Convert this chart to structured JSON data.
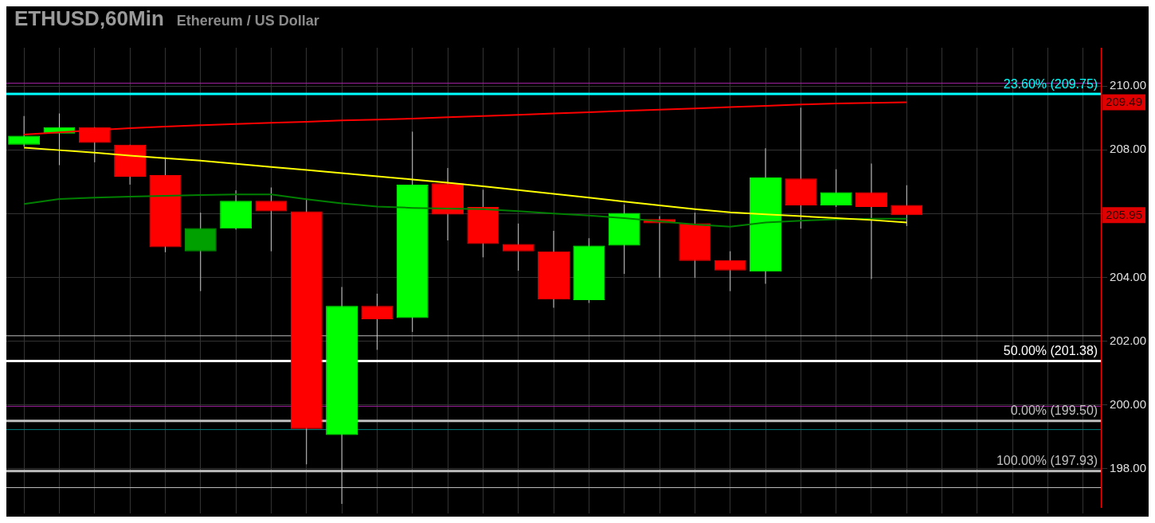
{
  "chart_data": {
    "type": "candlestick",
    "title": "ETHUSD,60Min",
    "subtitle": "Ethereum / US Dollar",
    "categories": [
      null,
      null,
      null,
      null,
      null,
      null,
      null,
      null,
      null,
      null,
      null,
      null,
      null,
      null,
      null,
      null,
      null,
      null,
      null,
      null,
      null,
      null,
      null,
      null,
      null,
      null,
      null,
      null,
      null,
      null,
      null
    ],
    "ohlc": [
      [
        208.16,
        209.06,
        208.1,
        208.44
      ],
      [
        208.51,
        209.14,
        207.52,
        208.71
      ],
      [
        208.71,
        208.71,
        207.61,
        208.22
      ],
      [
        208.16,
        208.16,
        206.91,
        207.16
      ],
      [
        207.21,
        207.76,
        204.79,
        204.95
      ],
      [
        204.82,
        206.03,
        203.57,
        205.55
      ],
      [
        205.53,
        206.73,
        205.5,
        206.4
      ],
      [
        206.4,
        206.82,
        204.82,
        206.07
      ],
      [
        206.07,
        206.47,
        198.14,
        199.25
      ],
      [
        199.06,
        203.7,
        196.9,
        203.11
      ],
      [
        203.11,
        203.49,
        201.73,
        202.69
      ],
      [
        202.73,
        208.57,
        202.29,
        206.91
      ],
      [
        206.95,
        207.43,
        205.16,
        205.97
      ],
      [
        206.21,
        206.75,
        204.63,
        205.05
      ],
      [
        205.05,
        205.69,
        204.21,
        204.82
      ],
      [
        204.82,
        205.46,
        203.05,
        203.31
      ],
      [
        203.29,
        205.23,
        203.2,
        205.0
      ],
      [
        205.0,
        206.29,
        204.11,
        206.02
      ],
      [
        205.83,
        205.92,
        203.99,
        205.7
      ],
      [
        205.7,
        206.03,
        203.99,
        204.52
      ],
      [
        204.54,
        204.82,
        203.57,
        204.22
      ],
      [
        204.18,
        208.05,
        203.8,
        207.13
      ],
      [
        207.1,
        209.32,
        205.53,
        206.26
      ],
      [
        206.26,
        207.39,
        206.21,
        206.67
      ],
      [
        206.67,
        207.57,
        203.95,
        206.21
      ],
      [
        206.27,
        206.89,
        205.61,
        205.95
      ],
      null,
      null,
      null,
      null,
      null
    ],
    "colors": [
      "#00ff00",
      "#00ff00",
      "#ff0000",
      "#ff0000",
      "#ff0000",
      "#00a000",
      "#00ff00",
      "#ff0000",
      "#ff0000",
      "#00ff00",
      "#ff0000",
      "#00ff00",
      "#ff0000",
      "#ff0000",
      "#ff0000",
      "#ff0000",
      "#00ff00",
      "#00ff00",
      "#ff0000",
      "#ff0000",
      "#ff0000",
      "#00ff00",
      "#ff0000",
      "#00ff00",
      "#ff0000",
      "#ff0000",
      null,
      null,
      null,
      null,
      null
    ],
    "series": [
      {
        "type": "line",
        "color": "#ff0000",
        "values": [
          208.48,
          208.55,
          208.62,
          208.68,
          208.73,
          208.77,
          208.81,
          208.85,
          208.88,
          208.92,
          208.95,
          208.98,
          209.02,
          209.06,
          209.1,
          209.14,
          209.18,
          209.22,
          209.26,
          209.3,
          209.34,
          209.38,
          209.42,
          209.45,
          209.47,
          209.49,
          null,
          null,
          null,
          null,
          null
        ]
      },
      {
        "type": "line",
        "color": "#ffff00",
        "values": [
          208.07,
          207.99,
          207.91,
          207.82,
          207.74,
          207.66,
          207.56,
          207.46,
          207.37,
          207.27,
          207.17,
          207.07,
          206.97,
          206.86,
          206.74,
          206.62,
          206.5,
          206.38,
          206.26,
          206.14,
          206.04,
          205.98,
          205.92,
          205.86,
          205.8,
          205.72,
          null,
          null,
          null,
          null,
          null
        ]
      },
      {
        "type": "line",
        "color": "#008000",
        "values": [
          206.3,
          206.46,
          206.5,
          206.53,
          206.56,
          206.58,
          206.6,
          206.6,
          206.45,
          206.32,
          206.22,
          206.18,
          206.16,
          206.14,
          206.08,
          206.0,
          205.94,
          205.86,
          205.76,
          205.66,
          205.59,
          205.72,
          205.78,
          205.82,
          205.84,
          205.84,
          null,
          null,
          null,
          null,
          null
        ]
      }
    ],
    "ylim": [
      196.8,
      211.2
    ],
    "yticks": [
      {
        "value": 198,
        "label": "198.00"
      },
      {
        "value": 200,
        "label": "200.00"
      },
      {
        "value": 202,
        "label": "202.00"
      },
      {
        "value": 204,
        "label": "204.00"
      },
      {
        "value": 206,
        "label": null
      },
      {
        "value": 208,
        "label": "208.00"
      },
      {
        "value": 210,
        "label": "210.00"
      }
    ],
    "grid": true,
    "marker": "none",
    "line_style": "solid",
    "ref_lines": [
      {
        "axis": "y",
        "value": 210.09,
        "color": "#a020a0"
      },
      {
        "axis": "y",
        "value": 209.75,
        "label": "23.60% (209.75)",
        "color": "#00ffff"
      },
      {
        "axis": "y",
        "value": 202.17,
        "color": "#c0c0c0"
      },
      {
        "axis": "y",
        "value": 201.38,
        "label": "50.00% (201.38)",
        "color": "#ffffff"
      },
      {
        "axis": "y",
        "value": 199.96,
        "color": "#a020a0"
      },
      {
        "axis": "y",
        "value": 199.5,
        "label": "0.00% (199.50)",
        "color": "#c0c0c0"
      },
      {
        "axis": "y",
        "value": 199.23,
        "color": "#008080"
      },
      {
        "axis": "y",
        "value": 197.93,
        "label": "100.00% (197.93)",
        "color": "#c0c0c0"
      },
      {
        "axis": "y",
        "value": 197.41,
        "color": "#c0c0c0"
      }
    ],
    "annotations": [
      "209.49",
      "205.95"
    ]
  }
}
